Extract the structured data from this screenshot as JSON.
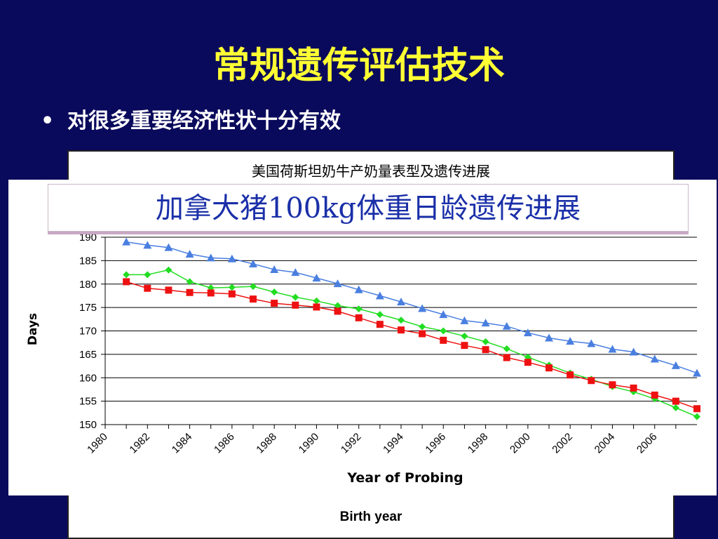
{
  "slide": {
    "title": "常规遗传评估技术",
    "bullet_marker": "•",
    "bullet": "对很多重要经济性状十分有效"
  },
  "background_figure": {
    "title": "美国荷斯坦奶牛产奶量表型及遗传进展",
    "xlabel": "Birth year"
  },
  "chart_data": {
    "type": "line",
    "title": "加拿大猪100kg体重日龄遗传进展",
    "xlabel": "Year of Probing",
    "ylabel": "Days",
    "ylim": [
      150,
      190
    ],
    "xlim": [
      1980,
      2008
    ],
    "y_ticks": [
      150,
      155,
      160,
      165,
      170,
      175,
      180,
      185,
      190
    ],
    "x_ticks": [
      "1980",
      "1982",
      "1984",
      "1986",
      "1988",
      "1990",
      "1992",
      "1994",
      "1996",
      "1998",
      "2000",
      "2002",
      "2004",
      "2006"
    ],
    "grid": "horizontal",
    "legend": "none",
    "x": [
      1981,
      1982,
      1983,
      1984,
      1985,
      1986,
      1987,
      1988,
      1989,
      1990,
      1991,
      1992,
      1993,
      1994,
      1995,
      1996,
      1997,
      1998,
      1999,
      2000,
      2001,
      2002,
      2003,
      2004,
      2005,
      2006,
      2007,
      2008
    ],
    "series": [
      {
        "marker": "triangle",
        "color": "#4a7fe0",
        "values": [
          189.0,
          188.3,
          187.8,
          186.4,
          185.6,
          185.4,
          184.3,
          183.1,
          182.5,
          181.3,
          180.1,
          178.8,
          177.5,
          176.2,
          174.8,
          173.5,
          172.2,
          171.7,
          171.0,
          169.6,
          168.5,
          167.8,
          167.3,
          166.1,
          165.5,
          164.0,
          162.6,
          161.0
        ]
      },
      {
        "marker": "diamond",
        "color": "#22dd22",
        "values": [
          182.0,
          182.0,
          183.0,
          180.5,
          179.2,
          179.3,
          179.5,
          178.3,
          177.2,
          176.4,
          175.4,
          174.7,
          173.5,
          172.3,
          170.9,
          170.0,
          168.9,
          167.7,
          166.2,
          164.4,
          162.7,
          161.0,
          159.7,
          158.1,
          157.0,
          155.5,
          153.6,
          151.7
        ]
      },
      {
        "marker": "square",
        "color": "#ee1111",
        "values": [
          180.5,
          179.1,
          178.7,
          178.2,
          178.1,
          177.9,
          176.8,
          175.9,
          175.5,
          175.1,
          174.2,
          172.8,
          171.4,
          170.2,
          169.4,
          168.0,
          166.9,
          166.0,
          164.3,
          163.3,
          162.1,
          160.6,
          159.4,
          158.5,
          157.8,
          156.3,
          155.0,
          153.4
        ]
      }
    ]
  }
}
